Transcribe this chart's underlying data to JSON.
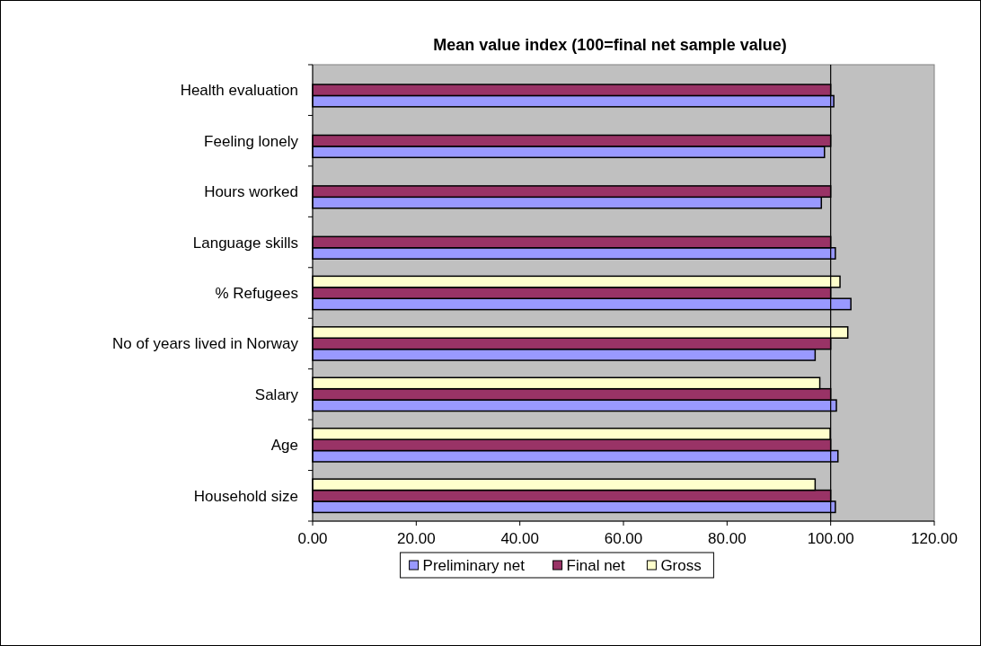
{
  "chart_data": {
    "type": "bar",
    "orientation": "horizontal",
    "title": "Mean value index (100=final net sample value)",
    "categories": [
      "Health evaluation",
      "Feeling lonely",
      "Hours worked",
      "Language skills",
      "% Refugees",
      "No of years lived in Norway",
      "Salary",
      "Age",
      "Household size"
    ],
    "series": [
      {
        "name": "Preliminary net",
        "color": "#9999ff",
        "values": [
          100.6,
          98.8,
          98.2,
          100.9,
          103.9,
          97.0,
          101.1,
          101.4,
          100.9
        ]
      },
      {
        "name": "Final net",
        "color": "#993366",
        "values": [
          100,
          100,
          100,
          100,
          100,
          100,
          100,
          100,
          100
        ]
      },
      {
        "name": "Gross",
        "color": "#ffffcc",
        "values": [
          null,
          null,
          null,
          null,
          101.8,
          103.3,
          97.9,
          99.9,
          97.0
        ]
      }
    ],
    "xlim": [
      0,
      120
    ],
    "xticks": [
      {
        "value": 0,
        "label": "0.00"
      },
      {
        "value": 20,
        "label": "20.00"
      },
      {
        "value": 40,
        "label": "40.00"
      },
      {
        "value": 60,
        "label": "60.00"
      },
      {
        "value": 80,
        "label": "80.00"
      },
      {
        "value": 100,
        "label": "100.00"
      },
      {
        "value": 120,
        "label": "120.00"
      }
    ],
    "ref_lines": [
      {
        "axis": "x",
        "value": 100,
        "color": "#000000"
      }
    ],
    "grid": false,
    "legend": "bottom"
  }
}
